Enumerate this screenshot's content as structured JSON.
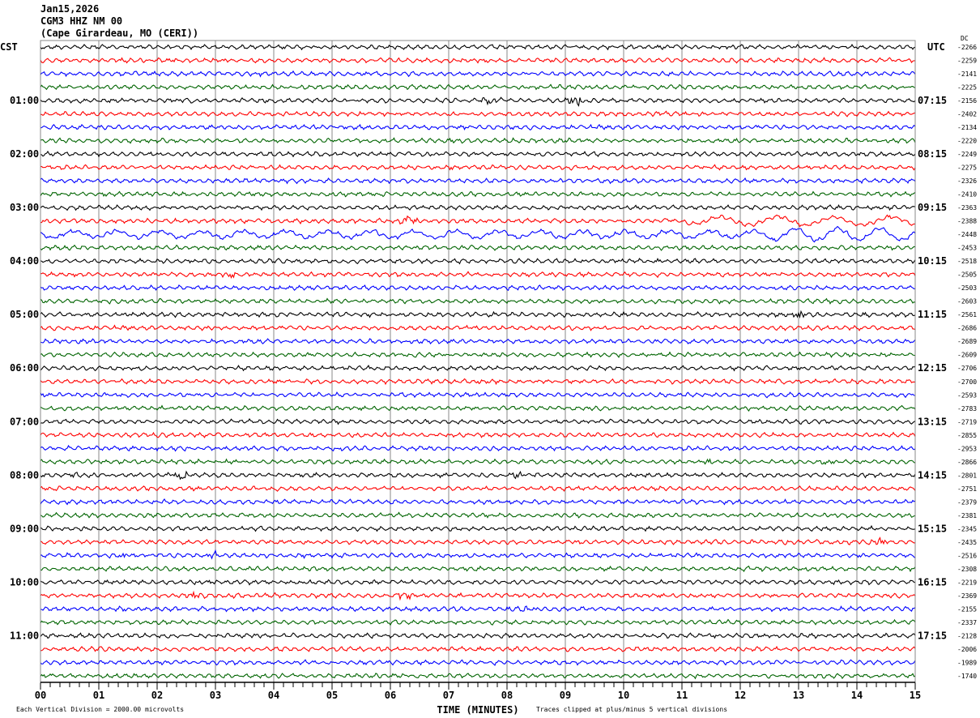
{
  "header": {
    "date": "Jan15,2026",
    "station": "CGM3 HHZ NM 00",
    "location": "(Cape Girardeau, MO (CERI))"
  },
  "chart_data": {
    "type": "line",
    "subtype": "helicorder",
    "xlabel": "TIME (MINUTES)",
    "xlim": [
      0,
      15
    ],
    "x_ticks": [
      "00",
      "01",
      "02",
      "03",
      "04",
      "05",
      "06",
      "07",
      "08",
      "09",
      "10",
      "11",
      "12",
      "13",
      "14",
      "15"
    ],
    "left_timezone": "CST",
    "right_timezone": "UTC",
    "dc_header": "DC",
    "left_hour_labels": [
      "CST",
      "01:00",
      "02:00",
      "03:00",
      "04:00",
      "05:00",
      "06:00",
      "07:00",
      "08:00",
      "09:00",
      "10:00",
      "11:00"
    ],
    "right_hour_labels": [
      "UTC",
      "07:15",
      "08:15",
      "09:15",
      "10:15",
      "11:15",
      "12:15",
      "13:15",
      "14:15",
      "15:15",
      "16:15",
      "17:15"
    ],
    "minutes_per_line": 15,
    "trace_colors": [
      "#000000",
      "#ff0000",
      "#0000ff",
      "#006400"
    ],
    "dc_offsets": [
      "-2266",
      "-2259",
      "-2141",
      "-2225",
      "-2156",
      "-2402",
      "-2134",
      "-2220",
      "-2249",
      "-2275",
      "-2326",
      "-2410",
      "-2363",
      "-2388",
      "-2448",
      "-2453",
      "-2518",
      "-2505",
      "-2503",
      "-2603",
      "-2561",
      "-2686",
      "-2689",
      "-2609",
      "-2706",
      "-2700",
      "-2593",
      "-2783",
      "-2719",
      "-2855",
      "-2953",
      "-2866",
      "-2801",
      "-2751",
      "-2379",
      "-2381",
      "-2345",
      "-2435",
      "-2516",
      "-2308",
      "-2219",
      "-2369",
      "-2155",
      "-2337",
      "-2128",
      "-2006",
      "-1989",
      "-1740"
    ],
    "scale_note": "Each Vertical Division = 2000.00 microvolts",
    "clip_note": "Traces clipped at plus/minus 5 vertical divisions",
    "grid": true
  }
}
